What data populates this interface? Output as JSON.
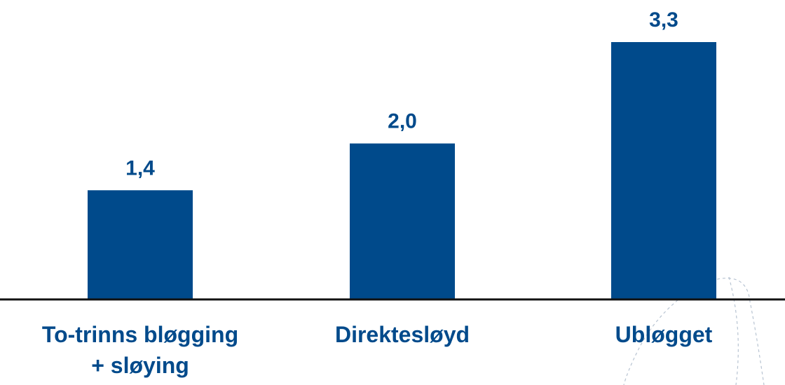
{
  "chart_data": {
    "type": "bar",
    "categories": [
      [
        "To-trinns bløgging",
        "+ sløying"
      ],
      [
        "Direktesløyd"
      ],
      [
        "Ubløgget"
      ]
    ],
    "values": [
      1.4,
      2.0,
      3.3
    ],
    "data_labels": [
      "1,4",
      "2,0",
      "3,3"
    ],
    "title": "",
    "xlabel": "",
    "ylabel": "",
    "ylim": [
      0,
      3.3
    ],
    "grid": false,
    "legend": "none",
    "colors": {
      "bar": "#004A8B",
      "label": "#004A8B",
      "axis": "#111111"
    }
  }
}
